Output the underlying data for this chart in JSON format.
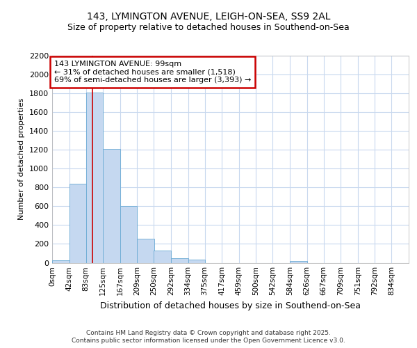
{
  "title1": "143, LYMINGTON AVENUE, LEIGH-ON-SEA, SS9 2AL",
  "title2": "Size of property relative to detached houses in Southend-on-Sea",
  "xlabel": "Distribution of detached houses by size in Southend-on-Sea",
  "ylabel": "Number of detached properties",
  "bar_values": [
    25,
    840,
    1810,
    1210,
    600,
    255,
    130,
    50,
    30,
    0,
    0,
    0,
    0,
    0,
    15,
    0,
    0,
    0,
    0,
    0,
    0
  ],
  "bin_edges": [
    0,
    42,
    83,
    125,
    167,
    209,
    250,
    292,
    334,
    375,
    417,
    459,
    500,
    542,
    584,
    626,
    667,
    709,
    751,
    792,
    834
  ],
  "tick_labels": [
    "0sqm",
    "42sqm",
    "83sqm",
    "125sqm",
    "167sqm",
    "209sqm",
    "250sqm",
    "292sqm",
    "334sqm",
    "375sqm",
    "417sqm",
    "459sqm",
    "500sqm",
    "542sqm",
    "584sqm",
    "626sqm",
    "667sqm",
    "709sqm",
    "751sqm",
    "792sqm",
    "834sqm"
  ],
  "bar_color": "#c5d8f0",
  "bar_edgecolor": "#6aaad4",
  "red_line_x": 99,
  "annotation_title": "143 LYMINGTON AVENUE: 99sqm",
  "annotation_line1": "← 31% of detached houses are smaller (1,518)",
  "annotation_line2": "69% of semi-detached houses are larger (3,393) →",
  "annotation_box_facecolor": "#ffffff",
  "annotation_box_edgecolor": "#cc0000",
  "ylim": [
    0,
    2200
  ],
  "yticks": [
    0,
    200,
    400,
    600,
    800,
    1000,
    1200,
    1400,
    1600,
    1800,
    2000,
    2200
  ],
  "background_color": "#ffffff",
  "plot_bg_color": "#ffffff",
  "grid_color": "#c8d8ee",
  "footer_line1": "Contains HM Land Registry data © Crown copyright and database right 2025.",
  "footer_line2": "Contains public sector information licensed under the Open Government Licence v3.0.",
  "title1_fontsize": 10,
  "title2_fontsize": 9,
  "ylabel_fontsize": 8,
  "xlabel_fontsize": 9,
  "tick_fontsize": 7.5,
  "ytick_fontsize": 8,
  "footer_fontsize": 6.5,
  "annot_fontsize": 8
}
